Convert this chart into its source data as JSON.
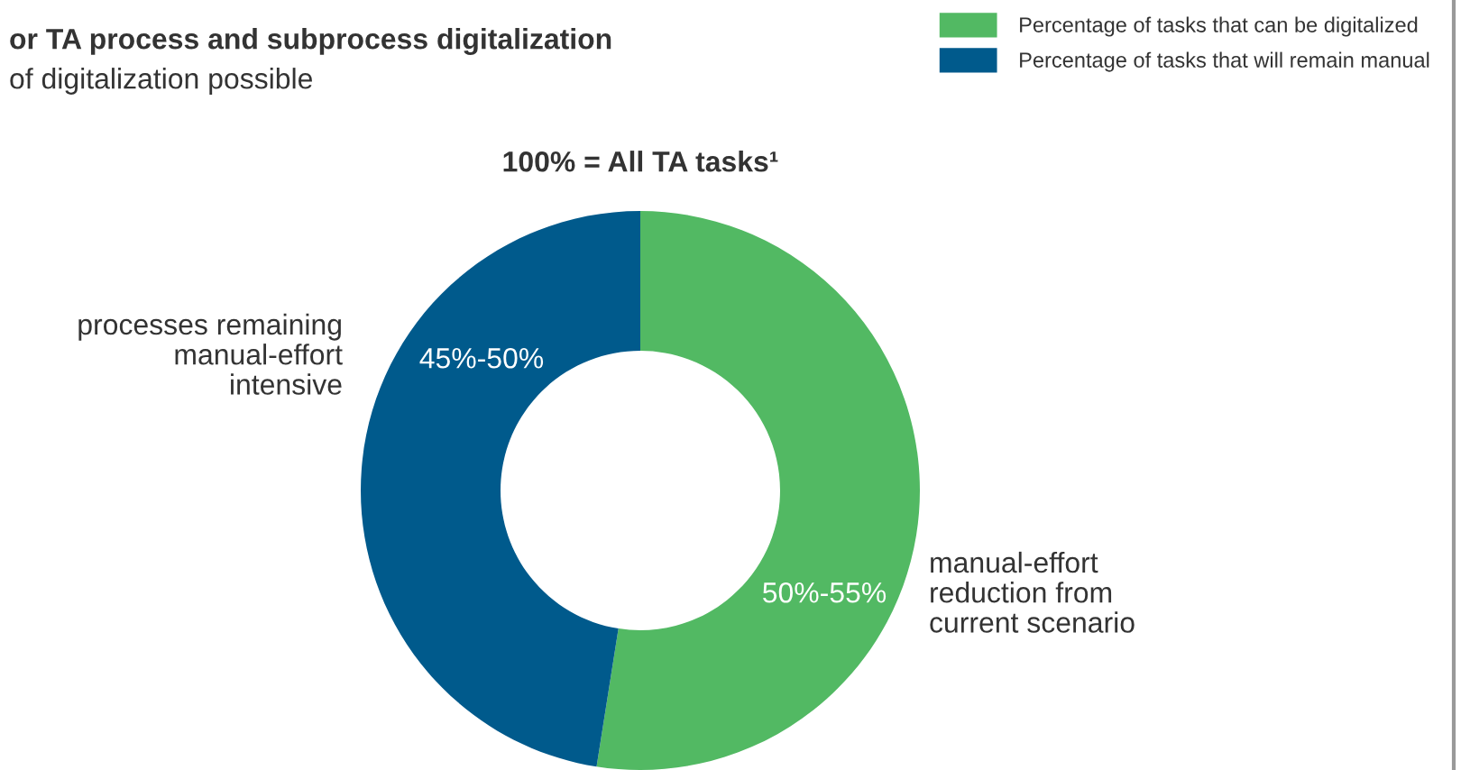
{
  "chart_data": {
    "type": "donut",
    "title": "or TA process and subprocess digitalization",
    "subtitle": "of digitalization possible",
    "xlabel": "100% = All TA tasks¹",
    "categories": [
      "Percentage of tasks that can be digitalized",
      "Percentage of tasks that will remain manual"
    ],
    "values": [
      52.5,
      47.5
    ],
    "colors": [
      "#52b963",
      "#005a8c"
    ],
    "annotations": [
      "manual-effort\nreduction from\ncurrent scenario",
      "processes remaining\nmanual-effort\nintensive",
      "50%-55%",
      "45%-50%"
    ],
    "legend": "top right"
  }
}
